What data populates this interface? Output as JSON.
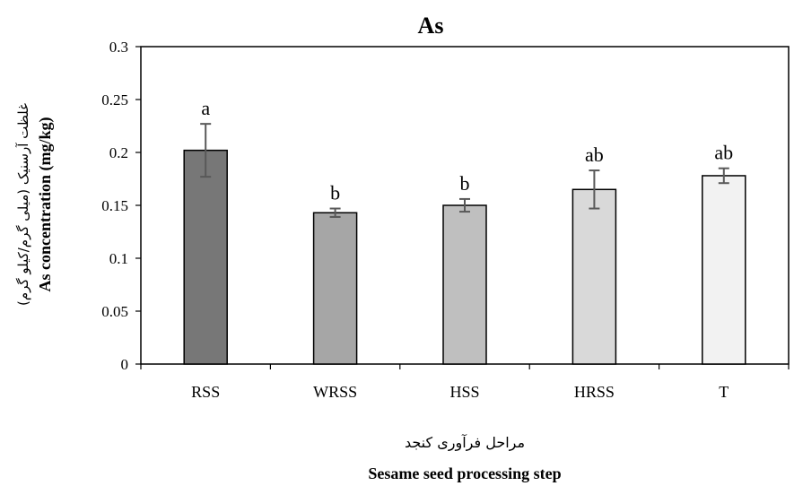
{
  "chart_data": {
    "type": "bar",
    "title": "As",
    "categories": [
      "RSS",
      "WRSS",
      "HSS",
      "HRSS",
      "T"
    ],
    "values": [
      0.202,
      0.143,
      0.15,
      0.165,
      0.178
    ],
    "errors": [
      0.025,
      0.004,
      0.006,
      0.018,
      0.007
    ],
    "significance_labels": [
      "a",
      "b",
      "b",
      "ab",
      "ab"
    ],
    "bar_colors": [
      "#777777",
      "#a6a6a6",
      "#bfbfbf",
      "#d9d9d9",
      "#f2f2f2"
    ],
    "ylim": [
      0,
      0.3
    ],
    "yticks": [
      "0",
      "0.05",
      "0.1",
      "0.15",
      "0.2",
      "0.25",
      "0.3"
    ],
    "ylabel_fa": "غلظت آرسنیک (میلی گرم/کیلو گرم)",
    "ylabel": "As concentration (mg/kg)",
    "xlabel_fa": "مراحل فرآوری کنجد",
    "xlabel": "Sesame seed processing step",
    "grid": false
  }
}
